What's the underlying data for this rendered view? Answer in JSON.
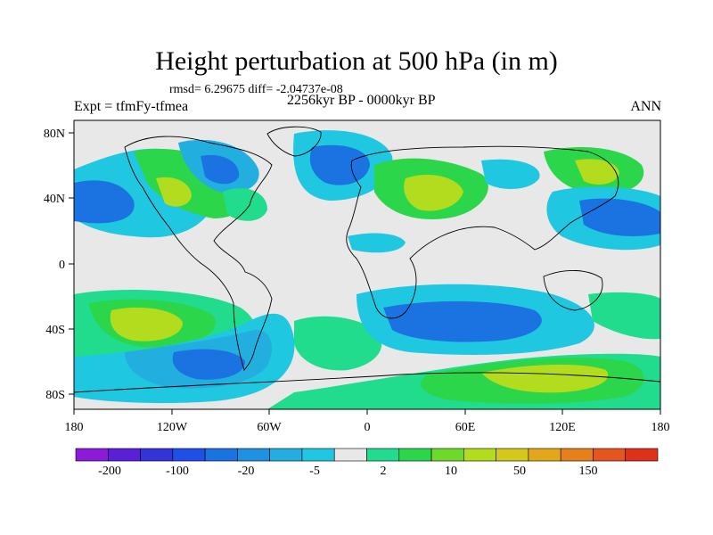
{
  "title": "Height perturbation at 500 hPa (in m)",
  "stats": "rmsd= 6.29675 diff= -2.04737e-08",
  "experiment": "Expt = tfmFy-tfmea",
  "period": "2256kyr BP - 0000kyr BP",
  "season": "ANN",
  "x_axis_labels": [
    "180",
    "120W",
    "60W",
    "0",
    "60E",
    "120E",
    "180"
  ],
  "y_axis_labels": [
    "80N",
    "40N",
    "0",
    "40S",
    "80S"
  ],
  "colorbar": {
    "labels": [
      "-200",
      "-100",
      "-20",
      "-5",
      "2",
      "10",
      "50",
      "150"
    ],
    "colors": [
      "#8c1ad9",
      "#5a1fd6",
      "#3333d9",
      "#1f4fe6",
      "#1a73e0",
      "#2091e0",
      "#23aee0",
      "#1fc8e0",
      "#e8e8e8",
      "#20dc8c",
      "#2bd64a",
      "#6ed92b",
      "#b4dc1f",
      "#d4c81a",
      "#e3a81a",
      "#e6801a",
      "#e5551f",
      "#e0301a"
    ]
  },
  "field_colors": {
    "background": "#e8e8e8",
    "pos_1": "#20dc8c",
    "pos_2": "#2bd64a",
    "pos_3": "#b4dc1f",
    "neg_1": "#1fc8e0",
    "neg_2": "#23aee0",
    "neg_3": "#1a73e0"
  }
}
